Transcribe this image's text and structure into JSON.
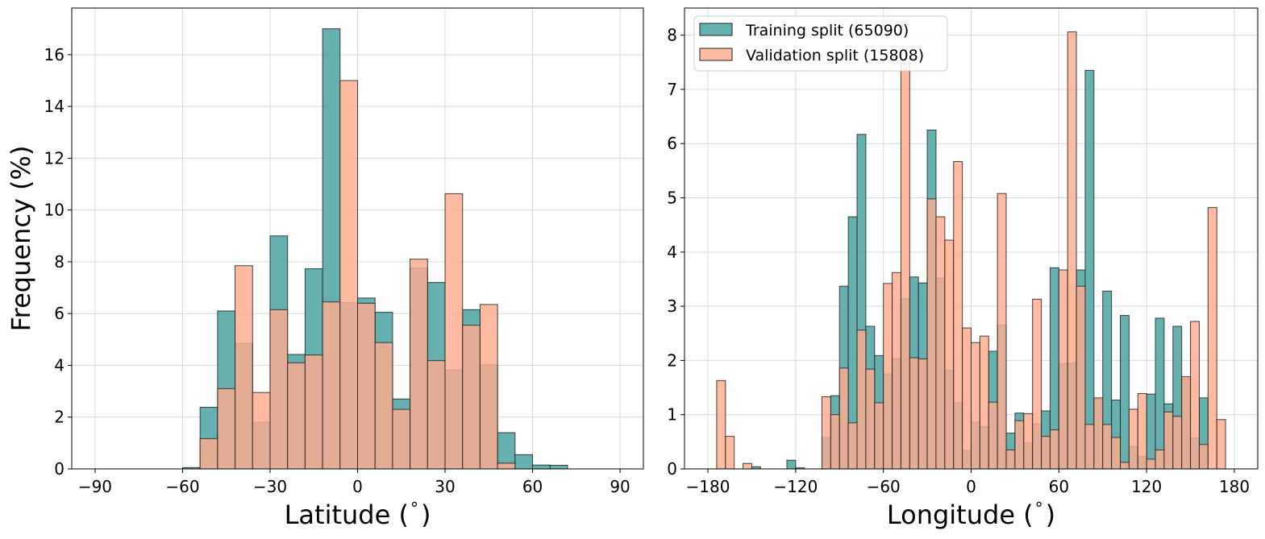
{
  "colors": {
    "training": "#5aa9a9",
    "validation": "#ffab8e",
    "edge": "#222222",
    "grid": "#d9d9d9"
  },
  "chart_data": [
    {
      "type": "bar",
      "subtype": "overlaid-histogram",
      "xlabel": "Latitude ($^\\circ$)",
      "xlabel_main": "Latitude (",
      "xlabel_unit": "°",
      "xlabel_close": ")",
      "ylabel": "Frequency (%)",
      "xlim": [
        -98,
        98
      ],
      "ylim": [
        0,
        17.8
      ],
      "xticks": [
        -90,
        -60,
        -30,
        0,
        30,
        60,
        90
      ],
      "xtick_labels": [
        "−90",
        "−60",
        "−30",
        "0",
        "30",
        "60",
        "90"
      ],
      "yticks": [
        0,
        2,
        4,
        6,
        8,
        10,
        12,
        14,
        16
      ],
      "ytick_labels": [
        "0",
        "2",
        "4",
        "6",
        "8",
        "10",
        "12",
        "14",
        "16"
      ],
      "grid": true,
      "bin_edges": [
        -90,
        -84,
        -78,
        -72,
        -66,
        -60,
        -54,
        -48,
        -42,
        -36,
        -30,
        -24,
        -18,
        -12,
        -6,
        0,
        6,
        12,
        18,
        24,
        30,
        36,
        42,
        48,
        54,
        60,
        66,
        72,
        78,
        84,
        90
      ],
      "series": [
        {
          "name": "Training split (65090)",
          "values": [
            0,
            0,
            0,
            0,
            0,
            0.05,
            2.38,
            6.1,
            4.85,
            1.8,
            9.0,
            4.42,
            7.73,
            17.0,
            6.42,
            6.6,
            6.05,
            2.7,
            7.76,
            7.2,
            3.82,
            6.15,
            4.02,
            1.4,
            0.55,
            0.15,
            0.14,
            0,
            0,
            0
          ]
        },
        {
          "name": "Validation split (15808)",
          "values": [
            0,
            0,
            0,
            0,
            0,
            0,
            1.17,
            3.1,
            7.85,
            2.95,
            6.15,
            4.1,
            4.4,
            6.45,
            15.0,
            6.4,
            4.88,
            2.3,
            8.1,
            4.18,
            10.63,
            5.55,
            6.35,
            0.22,
            0,
            0,
            0,
            0,
            0,
            0
          ]
        }
      ]
    },
    {
      "type": "bar",
      "subtype": "overlaid-histogram",
      "xlabel": "Longitude ($^\\circ$)",
      "xlabel_main": "Longitude (",
      "xlabel_unit": "°",
      "xlabel_close": ")",
      "ylabel": "",
      "xlim": [
        -196,
        196
      ],
      "ylim": [
        0,
        8.5
      ],
      "xticks": [
        -180,
        -120,
        -60,
        0,
        60,
        120,
        180
      ],
      "xtick_labels": [
        "−180",
        "−120",
        "−60",
        "0",
        "60",
        "120",
        "180"
      ],
      "yticks": [
        0,
        1,
        2,
        3,
        4,
        5,
        6,
        7,
        8
      ],
      "ytick_labels": [
        "0",
        "1",
        "2",
        "3",
        "4",
        "5",
        "6",
        "7",
        "8"
      ],
      "grid": true,
      "legend_position": "upper-left",
      "bin_edges": [
        -180,
        -174,
        -168,
        -162,
        -156,
        -150,
        -144,
        -138,
        -132,
        -126,
        -120,
        -114,
        -108,
        -102,
        -96,
        -90,
        -84,
        -78,
        -72,
        -66,
        -60,
        -54,
        -48,
        -42,
        -36,
        -30,
        -24,
        -18,
        -12,
        -6,
        0,
        6,
        12,
        18,
        24,
        30,
        36,
        42,
        48,
        54,
        60,
        66,
        72,
        78,
        84,
        90,
        96,
        102,
        108,
        114,
        120,
        126,
        132,
        138,
        144,
        150,
        156,
        162,
        168,
        174,
        180
      ],
      "series": [
        {
          "name": "Training split (65090)",
          "values": [
            0,
            0,
            0,
            0,
            0,
            0.04,
            0,
            0,
            0,
            0.16,
            0.02,
            0,
            0,
            0.58,
            1.35,
            3.37,
            4.65,
            6.17,
            2.63,
            2.09,
            1.75,
            2.03,
            3.14,
            3.54,
            3.43,
            6.25,
            3.52,
            1.82,
            1.22,
            0.34,
            0.86,
            0.78,
            2.17,
            2.65,
            0.66,
            1.03,
            0.48,
            0.83,
            1.07,
            3.71,
            1.94,
            1.95,
            3.67,
            7.35,
            1.29,
            3.28,
            1.27,
            2.83,
            0.41,
            0.23,
            1.38,
            2.78,
            1.2,
            2.63,
            1.66,
            0.57,
            1.31,
            0,
            0,
            0
          ]
        },
        {
          "name": "Validation split (15808)",
          "values": [
            0,
            1.63,
            0.6,
            0,
            0.1,
            0,
            0,
            0,
            0,
            0,
            0,
            0,
            0,
            1.33,
            1.0,
            1.86,
            0.85,
            2.56,
            1.84,
            1.22,
            3.42,
            3.62,
            7.48,
            2.05,
            2.03,
            4.98,
            4.65,
            4.22,
            5.67,
            2.6,
            2.33,
            2.45,
            1.23,
            5.08,
            0.35,
            0.89,
            1.02,
            3.13,
            0.6,
            0.72,
            3.67,
            8.06,
            3.37,
            0.82,
            1.31,
            0.82,
            0.58,
            0.12,
            1.1,
            1.39,
            0.18,
            0.35,
            1.05,
            0.97,
            1.7,
            2.72,
            0.45,
            4.82,
            0.91,
            0
          ]
        }
      ]
    }
  ]
}
